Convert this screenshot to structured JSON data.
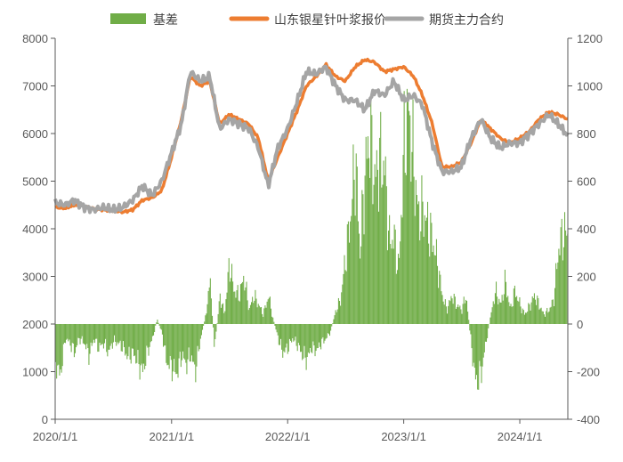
{
  "chart_data": {
    "type": "bar+line",
    "title": "",
    "x_axis": {
      "type": "date",
      "range": [
        "2020-01-01",
        "2024-05-31"
      ],
      "tick_labels": [
        "2020/1/1",
        "2021/1/1",
        "2022/1/1",
        "2023/1/1",
        "2024/1/1"
      ]
    },
    "y_left": {
      "range": [
        0,
        8000
      ],
      "ticks": [
        "0",
        "1000",
        "2000",
        "3000",
        "4000",
        "5000",
        "6000",
        "7000",
        "8000"
      ]
    },
    "y_right": {
      "range": [
        -400,
        1200
      ],
      "ticks": [
        "-400",
        "-200",
        "0",
        "200",
        "400",
        "600",
        "800",
        "1000",
        "1200"
      ]
    },
    "legend": {
      "position": "top",
      "entries": [
        "基差",
        "山东银星针叶浆报价",
        "期货主力合约"
      ]
    },
    "grid": false,
    "series": [
      {
        "name": "基差",
        "type": "bar",
        "axis": "right",
        "color": "#70AD47",
        "points": [
          [
            "2020-01-01",
            -160
          ],
          [
            "2020-01-15",
            -220
          ],
          [
            "2020-02-01",
            -60
          ],
          [
            "2020-02-15",
            -80
          ],
          [
            "2020-03-01",
            -120
          ],
          [
            "2020-03-15",
            -60
          ],
          [
            "2020-04-01",
            -80
          ],
          [
            "2020-04-15",
            -130
          ],
          [
            "2020-05-01",
            -60
          ],
          [
            "2020-05-15",
            -100
          ],
          [
            "2020-06-01",
            -80
          ],
          [
            "2020-06-15",
            -120
          ],
          [
            "2020-07-01",
            -70
          ],
          [
            "2020-07-15",
            -80
          ],
          [
            "2020-08-01",
            -100
          ],
          [
            "2020-08-15",
            -140
          ],
          [
            "2020-09-01",
            -120
          ],
          [
            "2020-09-15",
            -160
          ],
          [
            "2020-10-01",
            -200
          ],
          [
            "2020-10-15",
            -120
          ],
          [
            "2020-11-01",
            -60
          ],
          [
            "2020-11-15",
            20
          ],
          [
            "2020-12-01",
            -40
          ],
          [
            "2020-12-15",
            -160
          ],
          [
            "2021-01-01",
            -180
          ],
          [
            "2021-01-15",
            -210
          ],
          [
            "2021-02-01",
            -130
          ],
          [
            "2021-02-15",
            -170
          ],
          [
            "2021-03-01",
            -130
          ],
          [
            "2021-03-15",
            -200
          ],
          [
            "2021-04-01",
            -60
          ],
          [
            "2021-04-15",
            20
          ],
          [
            "2021-05-01",
            180
          ],
          [
            "2021-05-15",
            -100
          ],
          [
            "2021-06-01",
            120
          ],
          [
            "2021-06-15",
            40
          ],
          [
            "2021-07-01",
            260
          ],
          [
            "2021-07-15",
            140
          ],
          [
            "2021-08-01",
            120
          ],
          [
            "2021-08-15",
            200
          ],
          [
            "2021-09-01",
            60
          ],
          [
            "2021-09-15",
            120
          ],
          [
            "2021-10-01",
            80
          ],
          [
            "2021-10-15",
            40
          ],
          [
            "2021-11-01",
            120
          ],
          [
            "2021-11-15",
            20
          ],
          [
            "2021-12-01",
            -60
          ],
          [
            "2021-12-15",
            -120
          ],
          [
            "2022-01-01",
            -100
          ],
          [
            "2022-01-15",
            -60
          ],
          [
            "2022-02-01",
            -90
          ],
          [
            "2022-02-15",
            -130
          ],
          [
            "2022-03-01",
            -150
          ],
          [
            "2022-03-15",
            -100
          ],
          [
            "2022-04-01",
            -110
          ],
          [
            "2022-04-15",
            -80
          ],
          [
            "2022-05-01",
            -60
          ],
          [
            "2022-05-15",
            -30
          ],
          [
            "2022-06-01",
            60
          ],
          [
            "2022-06-15",
            100
          ],
          [
            "2022-07-01",
            280
          ],
          [
            "2022-07-15",
            430
          ],
          [
            "2022-08-01",
            700
          ],
          [
            "2022-08-15",
            300
          ],
          [
            "2022-09-01",
            650
          ],
          [
            "2022-09-15",
            800
          ],
          [
            "2022-10-01",
            600
          ],
          [
            "2022-10-15",
            700
          ],
          [
            "2022-11-01",
            650
          ],
          [
            "2022-11-15",
            350
          ],
          [
            "2022-12-01",
            360
          ],
          [
            "2022-12-15",
            220
          ],
          [
            "2023-01-01",
            750
          ],
          [
            "2023-01-15",
            900
          ],
          [
            "2023-02-01",
            650
          ],
          [
            "2023-02-15",
            450
          ],
          [
            "2023-03-01",
            480
          ],
          [
            "2023-03-15",
            420
          ],
          [
            "2023-04-01",
            350
          ],
          [
            "2023-04-15",
            260
          ],
          [
            "2023-05-01",
            120
          ],
          [
            "2023-05-15",
            60
          ],
          [
            "2023-06-01",
            120
          ],
          [
            "2023-06-15",
            80
          ],
          [
            "2023-07-01",
            60
          ],
          [
            "2023-07-15",
            120
          ],
          [
            "2023-08-01",
            -100
          ],
          [
            "2023-08-15",
            -250
          ],
          [
            "2023-09-01",
            -200
          ],
          [
            "2023-09-15",
            -80
          ],
          [
            "2023-10-01",
            40
          ],
          [
            "2023-10-15",
            140
          ],
          [
            "2023-11-01",
            80
          ],
          [
            "2023-11-15",
            180
          ],
          [
            "2023-12-01",
            60
          ],
          [
            "2023-12-15",
            140
          ],
          [
            "2024-01-01",
            80
          ],
          [
            "2024-01-15",
            40
          ],
          [
            "2024-02-01",
            80
          ],
          [
            "2024-02-15",
            120
          ],
          [
            "2024-03-01",
            80
          ],
          [
            "2024-03-15",
            40
          ],
          [
            "2024-04-01",
            60
          ],
          [
            "2024-04-15",
            100
          ],
          [
            "2024-05-01",
            320
          ],
          [
            "2024-05-15",
            380
          ]
        ]
      },
      {
        "name": "山东银星针叶浆报价",
        "type": "line",
        "axis": "left",
        "color": "#ED7D31",
        "points": [
          [
            "2020-01-01",
            4450
          ],
          [
            "2020-02-01",
            4430
          ],
          [
            "2020-03-01",
            4500
          ],
          [
            "2020-04-01",
            4480
          ],
          [
            "2020-05-01",
            4420
          ],
          [
            "2020-06-01",
            4400
          ],
          [
            "2020-07-01",
            4380
          ],
          [
            "2020-08-01",
            4350
          ],
          [
            "2020-09-01",
            4400
          ],
          [
            "2020-10-01",
            4600
          ],
          [
            "2020-11-01",
            4650
          ],
          [
            "2020-12-01",
            4800
          ],
          [
            "2021-01-01",
            5500
          ],
          [
            "2021-02-01",
            6300
          ],
          [
            "2021-03-01",
            7200
          ],
          [
            "2021-04-01",
            7000
          ],
          [
            "2021-05-01",
            7100
          ],
          [
            "2021-06-01",
            6200
          ],
          [
            "2021-07-01",
            6400
          ],
          [
            "2021-08-01",
            6300
          ],
          [
            "2021-09-01",
            6200
          ],
          [
            "2021-10-01",
            5900
          ],
          [
            "2021-11-01",
            5000
          ],
          [
            "2021-12-01",
            5500
          ],
          [
            "2022-01-01",
            6000
          ],
          [
            "2022-02-01",
            6500
          ],
          [
            "2022-03-01",
            7000
          ],
          [
            "2022-04-01",
            7200
          ],
          [
            "2022-05-01",
            7450
          ],
          [
            "2022-06-01",
            7200
          ],
          [
            "2022-07-01",
            7100
          ],
          [
            "2022-08-01",
            7400
          ],
          [
            "2022-09-01",
            7550
          ],
          [
            "2022-10-01",
            7500
          ],
          [
            "2022-11-01",
            7300
          ],
          [
            "2022-12-01",
            7350
          ],
          [
            "2023-01-01",
            7400
          ],
          [
            "2023-02-01",
            7200
          ],
          [
            "2023-03-01",
            6800
          ],
          [
            "2023-04-01",
            6200
          ],
          [
            "2023-05-01",
            5300
          ],
          [
            "2023-06-01",
            5300
          ],
          [
            "2023-07-01",
            5400
          ],
          [
            "2023-08-01",
            5800
          ],
          [
            "2023-09-01",
            6300
          ],
          [
            "2023-10-01",
            6100
          ],
          [
            "2023-11-01",
            5900
          ],
          [
            "2023-12-01",
            5800
          ],
          [
            "2024-01-01",
            5900
          ],
          [
            "2024-02-01",
            6050
          ],
          [
            "2024-03-01",
            6300
          ],
          [
            "2024-04-01",
            6450
          ],
          [
            "2024-05-01",
            6400
          ],
          [
            "2024-05-31",
            6300
          ]
        ]
      },
      {
        "name": "期货主力合约",
        "type": "line",
        "axis": "left",
        "color": "#A5A5A5",
        "points": [
          [
            "2020-01-01",
            4550
          ],
          [
            "2020-02-01",
            4500
          ],
          [
            "2020-03-01",
            4600
          ],
          [
            "2020-04-01",
            4450
          ],
          [
            "2020-05-01",
            4400
          ],
          [
            "2020-06-01",
            4450
          ],
          [
            "2020-07-01",
            4400
          ],
          [
            "2020-08-01",
            4450
          ],
          [
            "2020-09-01",
            4600
          ],
          [
            "2020-10-01",
            4900
          ],
          [
            "2020-11-01",
            4700
          ],
          [
            "2020-12-01",
            5000
          ],
          [
            "2021-01-01",
            5600
          ],
          [
            "2021-02-01",
            6200
          ],
          [
            "2021-03-01",
            7300
          ],
          [
            "2021-04-01",
            7100
          ],
          [
            "2021-05-01",
            7200
          ],
          [
            "2021-06-01",
            6100
          ],
          [
            "2021-07-01",
            6300
          ],
          [
            "2021-08-01",
            6200
          ],
          [
            "2021-09-01",
            6100
          ],
          [
            "2021-10-01",
            5700
          ],
          [
            "2021-11-01",
            4900
          ],
          [
            "2021-12-01",
            5700
          ],
          [
            "2022-01-01",
            6100
          ],
          [
            "2022-02-01",
            6700
          ],
          [
            "2022-03-01",
            7300
          ],
          [
            "2022-04-01",
            7250
          ],
          [
            "2022-05-01",
            7400
          ],
          [
            "2022-06-01",
            7000
          ],
          [
            "2022-07-01",
            6700
          ],
          [
            "2022-08-01",
            6700
          ],
          [
            "2022-09-01",
            6500
          ],
          [
            "2022-10-01",
            6900
          ],
          [
            "2022-11-01",
            6800
          ],
          [
            "2022-12-01",
            7100
          ],
          [
            "2023-01-01",
            6700
          ],
          [
            "2023-02-01",
            6800
          ],
          [
            "2023-03-01",
            6600
          ],
          [
            "2023-04-01",
            5800
          ],
          [
            "2023-05-01",
            5200
          ],
          [
            "2023-06-01",
            5200
          ],
          [
            "2023-07-01",
            5300
          ],
          [
            "2023-08-01",
            5900
          ],
          [
            "2023-09-01",
            6300
          ],
          [
            "2023-10-01",
            5900
          ],
          [
            "2023-11-01",
            5700
          ],
          [
            "2023-12-01",
            5800
          ],
          [
            "2024-01-01",
            5800
          ],
          [
            "2024-02-01",
            6000
          ],
          [
            "2024-03-01",
            6200
          ],
          [
            "2024-04-01",
            6400
          ],
          [
            "2024-05-01",
            6200
          ],
          [
            "2024-05-31",
            5950
          ]
        ]
      }
    ]
  }
}
